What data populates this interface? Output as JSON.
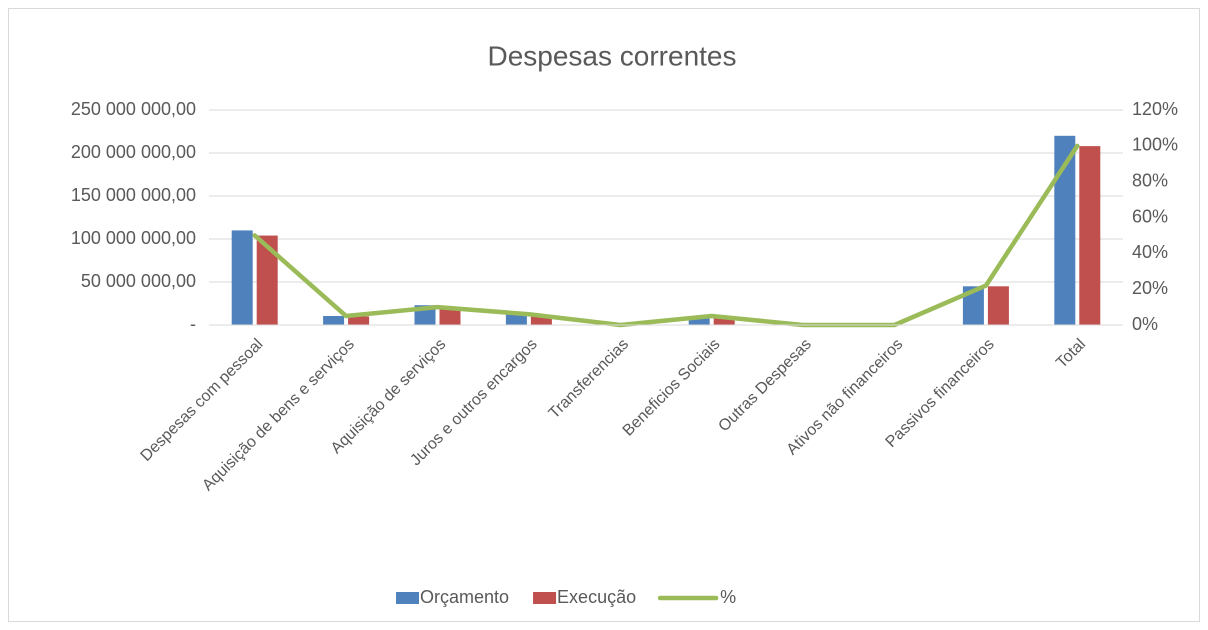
{
  "chart_data": {
    "type": "combo",
    "title": "Despesas correntes",
    "categories": [
      "Despesas com pessoal",
      "Aquisição de bens e serviços",
      "Aquisição de  serviços",
      "Juros e outros encargos",
      "Transferencias",
      "Beneficios Sociais",
      "Outras Despesas",
      "Ativos não financeiros",
      "Passivos financeiros",
      "Total"
    ],
    "series": [
      {
        "name": "Orçamento",
        "type": "bar",
        "color": "#4f81bd",
        "values": [
          110000000,
          10500000,
          23000000,
          12800000,
          0,
          10000000,
          0,
          0,
          45000000,
          220000000
        ]
      },
      {
        "name": "Execução",
        "type": "bar",
        "color": "#c0504d",
        "values": [
          104000000,
          10000000,
          18600000,
          10500000,
          0,
          9000000,
          0,
          0,
          45000000,
          208000000
        ]
      },
      {
        "name": "%",
        "type": "line",
        "axis": "y2",
        "color": "#9bbb59",
        "values": [
          50,
          5,
          10,
          6,
          0,
          5,
          0,
          0,
          22,
          100
        ]
      }
    ],
    "ylim": [
      0,
      250000000
    ],
    "yticks": [
      {
        "value": 0,
        "label": "-"
      },
      {
        "value": 50000000,
        "label": "50 000 000,00"
      },
      {
        "value": 100000000,
        "label": "100 000 000,00"
      },
      {
        "value": 150000000,
        "label": "150 000 000,00"
      },
      {
        "value": 200000000,
        "label": "200 000 000,00"
      },
      {
        "value": 250000000,
        "label": "250 000 000,00"
      }
    ],
    "y2lim": [
      0,
      120
    ],
    "y2ticks": [
      {
        "value": 0,
        "label": "0%"
      },
      {
        "value": 20,
        "label": "20%"
      },
      {
        "value": 40,
        "label": "40%"
      },
      {
        "value": 60,
        "label": "60%"
      },
      {
        "value": 80,
        "label": "80%"
      },
      {
        "value": 100,
        "label": "100%"
      },
      {
        "value": 120,
        "label": "120%"
      }
    ],
    "grid": true,
    "legend": "bottom"
  }
}
